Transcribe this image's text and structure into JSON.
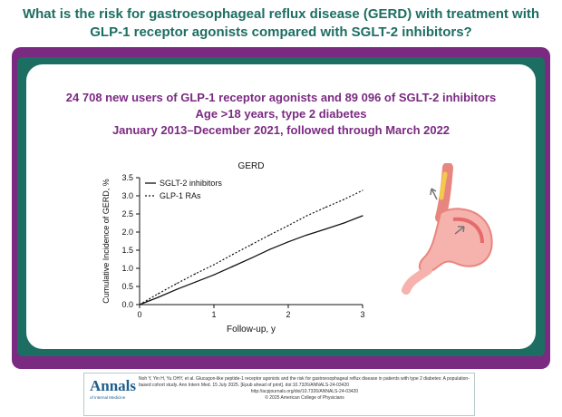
{
  "headline": {
    "line1": "What is the risk for gastroesophageal reflux disease (GERD) with treatment with",
    "line2": "GLP-1 receptor agonists compared with SGLT-2 inhibitors?"
  },
  "study": {
    "line1": "24 708 new users of GLP-1 receptor agonists and 89 096 of SGLT-2 inhibitors",
    "line2": "Age >18 years, type 2 diabetes",
    "line3": "January 2013–December 2021, followed through March 2022"
  },
  "chart_data": {
    "type": "line",
    "title": "GERD",
    "xlabel": "Follow-up, y",
    "ylabel": "Cumulative Incidence of GERD, %",
    "xlim": [
      0,
      3
    ],
    "ylim": [
      0,
      3.5
    ],
    "x_ticks": [
      "0",
      "1",
      "2",
      "3"
    ],
    "y_ticks": [
      "0.0",
      "0.5",
      "1.0",
      "1.5",
      "2.0",
      "2.5",
      "3.0",
      "3.5"
    ],
    "legend_position": "top-left",
    "grid": false,
    "series": [
      {
        "name": "SGLT-2 inhibitors",
        "style": "solid",
        "x": [
          0,
          0.25,
          0.5,
          0.75,
          1.0,
          1.25,
          1.5,
          1.75,
          2.0,
          2.25,
          2.5,
          2.75,
          3.0
        ],
        "y": [
          0,
          0.2,
          0.42,
          0.62,
          0.82,
          1.05,
          1.28,
          1.52,
          1.73,
          1.92,
          2.08,
          2.25,
          2.45
        ]
      },
      {
        "name": "GLP-1 RAs",
        "style": "dotted",
        "x": [
          0,
          0.25,
          0.5,
          0.75,
          1.0,
          1.25,
          1.5,
          1.75,
          2.0,
          2.25,
          2.5,
          2.75,
          3.0
        ],
        "y": [
          0,
          0.3,
          0.58,
          0.85,
          1.1,
          1.38,
          1.65,
          1.92,
          2.18,
          2.45,
          2.68,
          2.9,
          3.15
        ]
      }
    ],
    "colors": {
      "line": "#111111",
      "axis": "#111111"
    }
  },
  "citation": {
    "logo": "Annals",
    "logo_sub": "of Internal Medicine",
    "text": "Noh Y, Yin H, Yu OHY, et al. Glucagon-like peptide-1 receptor agonists and the risk for gastroesophageal reflux disease in patients with type 2 diabetes: A population-based cohort study. Ann Intern Med. 15 July 2025. [Epub ahead of print]. doi:10.7326/ANNALS-24-03420",
    "url": "http://acpjournals.org/doi/10.7326/ANNALS-24-03420",
    "copyright": "© 2025 American College of Physicians"
  },
  "colors": {
    "teal": "#1d6e62",
    "purple": "#7b2a82",
    "stomach": "#f4a6a6"
  },
  "icons": [
    "stomach-illustration",
    "reflux-arrow-icon"
  ]
}
